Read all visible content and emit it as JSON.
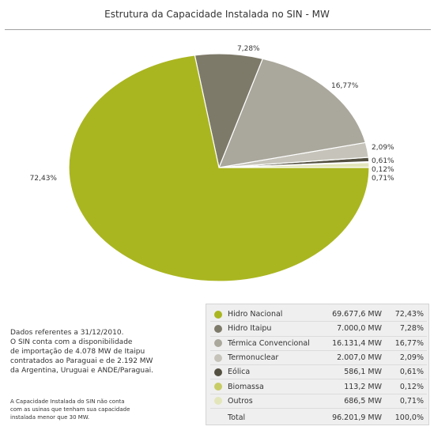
{
  "chart_data": {
    "type": "pie",
    "title": "Estrutura da Capacidade Instalada no SIN - MW",
    "slices": [
      {
        "name": "Hidro Nacional",
        "mw": "69.677,6 MW",
        "percent": 72.43,
        "label": "72,43%",
        "color": "#aab620"
      },
      {
        "name": "Hidro Itaipu",
        "mw": "7.000,0 MW",
        "percent": 7.28,
        "label": "7,28%",
        "color": "#7e7a6a"
      },
      {
        "name": "Térmica Convencional",
        "mw": "16.131,4 MW",
        "percent": 16.77,
        "label": "16,77%",
        "color": "#aaa79c"
      },
      {
        "name": "Termonuclear",
        "mw": "2.007,0 MW",
        "percent": 2.09,
        "label": "2,09%",
        "color": "#c6c4ba"
      },
      {
        "name": "Eólica",
        "mw": "586,1 MW",
        "percent": 0.61,
        "label": "0,61%",
        "color": "#545041"
      },
      {
        "name": "Biomassa",
        "mw": "113,2 MW",
        "percent": 0.12,
        "label": "0,12%",
        "color": "#c8cc66"
      },
      {
        "name": "Outros",
        "mw": "686,5 MW",
        "percent": 0.71,
        "label": "0,71%",
        "color": "#e3e6bb"
      }
    ],
    "total": {
      "name": "Total",
      "mw": "96.201,9 MW",
      "label": "100,0%"
    }
  },
  "notes": {
    "line1": "Dados referentes a 31/12/2010.",
    "line2": "O SIN conta com a disponibilidade",
    "line3": "de importação de 4.078 MW de Itaipu",
    "line4": "contratados ao Paraguai e de 2.192 MW",
    "line5": "da Argentina, Uruguai e ANDE/Paraguai.",
    "small1": "A Capacidade Instalada do SIN não conta",
    "small2": "com as usinas que tenham sua capacidade",
    "small3": "instalada menor que 30 MW."
  }
}
